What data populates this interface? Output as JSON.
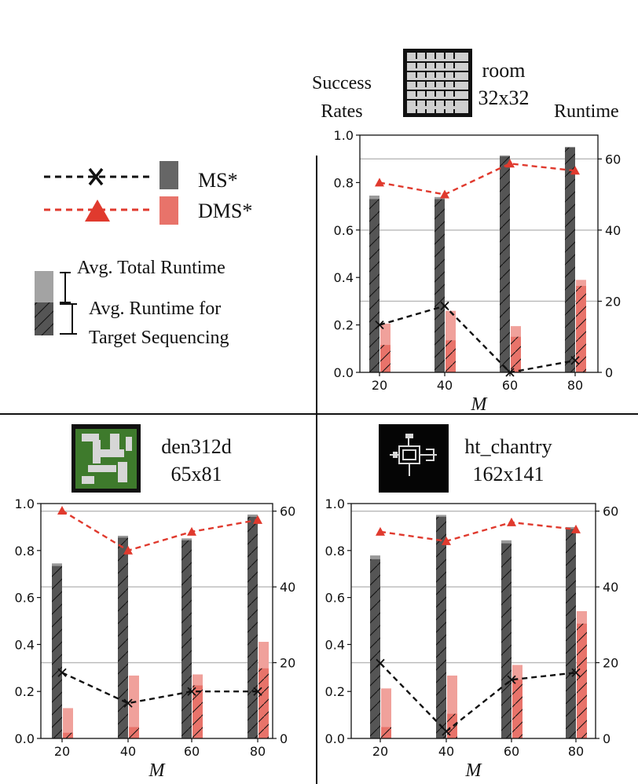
{
  "colors": {
    "ms_bar": "#555555",
    "dms_bar": "#e8736a",
    "ms_line": "#111111",
    "dms_line": "#e03a2e",
    "gridline": "#b8b8b8"
  },
  "legend": {
    "ms_label": "MS*",
    "dms_label": "DMS*",
    "total_label": "Avg. Total Runtime",
    "seq_label_1": "Avg. Runtime for",
    "seq_label_2": "Target Sequencing"
  },
  "header": {
    "success_1": "Success",
    "success_2": "Rates",
    "runtime": "Runtime"
  },
  "chart_data": [
    {
      "type": "bar",
      "map_name": "room",
      "map_size": "32x32",
      "icon": "room-map-thumbnail-icon",
      "xlabel": "M",
      "ylabel": "Success Rates",
      "y2label": "Runtime",
      "categories": [
        "20",
        "40",
        "60",
        "80"
      ],
      "ylim": [
        0,
        1.0
      ],
      "y2lim": [
        0,
        66.7
      ],
      "y_ticks": [
        "0.0",
        "0.2",
        "0.4",
        "0.6",
        "0.8",
        "1.0"
      ],
      "y2_ticks": [
        "0",
        "20",
        "40",
        "60"
      ],
      "series": [
        {
          "name": "MS* runtime total",
          "values": [
            49.7,
            49.3,
            61.0,
            63.4
          ]
        },
        {
          "name": "MS* runtime target sequencing",
          "values": [
            48.7,
            48.7,
            60.7,
            63.2
          ]
        },
        {
          "name": "DMS* runtime total",
          "values": [
            13.7,
            17.3,
            13.0,
            26.0
          ]
        },
        {
          "name": "DMS* runtime target sequencing",
          "values": [
            7.7,
            9.0,
            10.0,
            24.3
          ]
        },
        {
          "name": "MS* success rate",
          "values": [
            0.2,
            0.28,
            0.0,
            0.05
          ]
        },
        {
          "name": "DMS* success rate",
          "values": [
            0.8,
            0.75,
            0.88,
            0.85
          ]
        }
      ]
    },
    {
      "type": "bar",
      "map_name": "den312d",
      "map_size": "65x81",
      "icon": "den312d-map-thumbnail-icon",
      "xlabel": "M",
      "ylabel": "Success Rates",
      "y2label": "Runtime",
      "categories": [
        "20",
        "40",
        "60",
        "80"
      ],
      "ylim": [
        0,
        1.0
      ],
      "y2lim": [
        0,
        62
      ],
      "y_ticks": [
        "0.0",
        "0.2",
        "0.4",
        "0.6",
        "0.8",
        "1.0"
      ],
      "y2_ticks": [
        "0",
        "20",
        "40",
        "60"
      ],
      "series": [
        {
          "name": "MS* runtime total",
          "values": [
            46.2,
            53.5,
            52.8,
            59.1
          ]
        },
        {
          "name": "MS* runtime target sequencing",
          "values": [
            45.5,
            53.0,
            52.3,
            58.5
          ]
        },
        {
          "name": "DMS* runtime total",
          "values": [
            8.0,
            16.6,
            16.9,
            25.5
          ]
        },
        {
          "name": "DMS* runtime target sequencing",
          "values": [
            1.5,
            3.0,
            14.0,
            18.5
          ]
        },
        {
          "name": "MS* success rate",
          "values": [
            0.28,
            0.15,
            0.2,
            0.2
          ]
        },
        {
          "name": "DMS* success rate",
          "values": [
            0.97,
            0.8,
            0.88,
            0.93
          ]
        }
      ]
    },
    {
      "type": "bar",
      "map_name": "ht_chantry",
      "map_size": "162x141",
      "icon": "ht-chantry-map-thumbnail-icon",
      "xlabel": "M",
      "ylabel": "Success Rates",
      "y2label": "Runtime",
      "categories": [
        "20",
        "40",
        "60",
        "80"
      ],
      "ylim": [
        0,
        1.0
      ],
      "y2lim": [
        0,
        62
      ],
      "y_ticks": [
        "0.0",
        "0.2",
        "0.4",
        "0.6",
        "0.8",
        "1.0"
      ],
      "y2_ticks": [
        "0",
        "20",
        "40",
        "60"
      ],
      "series": [
        {
          "name": "MS* runtime total",
          "values": [
            48.3,
            59.0,
            52.3,
            55.8
          ]
        },
        {
          "name": "MS* runtime target sequencing",
          "values": [
            47.3,
            58.5,
            51.5,
            55.3
          ]
        },
        {
          "name": "DMS* runtime total",
          "values": [
            13.2,
            16.6,
            19.4,
            33.6
          ]
        },
        {
          "name": "DMS* runtime target sequencing",
          "values": [
            3.0,
            6.5,
            15.5,
            30.3
          ]
        },
        {
          "name": "MS* success rate",
          "values": [
            0.32,
            0.03,
            0.25,
            0.28
          ]
        },
        {
          "name": "DMS* success rate",
          "values": [
            0.88,
            0.84,
            0.92,
            0.89
          ]
        }
      ]
    }
  ]
}
